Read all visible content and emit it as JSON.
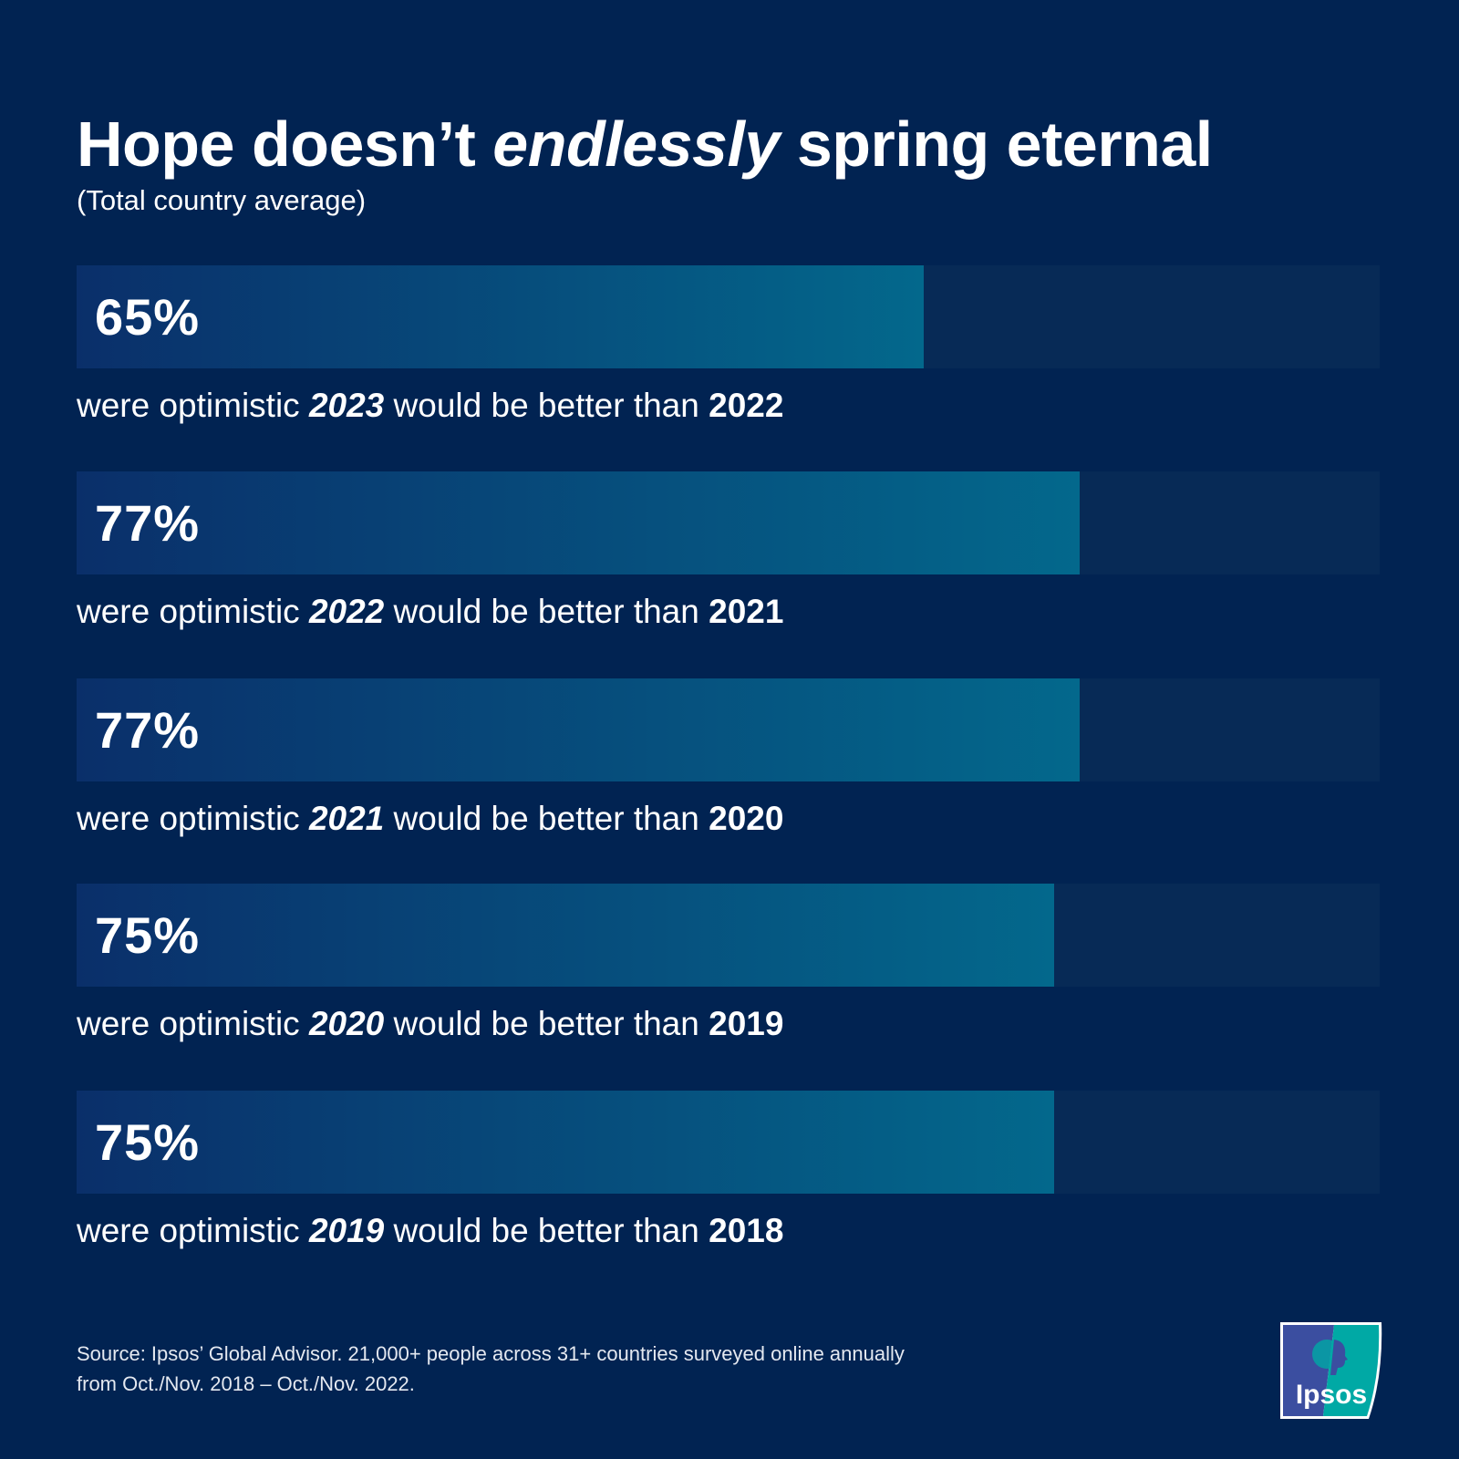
{
  "header": {
    "title_part1": "Hope doesn’t ",
    "title_italic": "endlessly",
    "title_part2": " spring eternal",
    "subtitle": "(Total country average)"
  },
  "chart_data": {
    "type": "bar",
    "orientation": "horizontal",
    "xlim": [
      0,
      100
    ],
    "unit": "%",
    "categories": [
      "2023",
      "2022",
      "2021",
      "2020",
      "2019"
    ],
    "values": [
      65,
      77,
      77,
      75,
      75
    ],
    "bars": [
      {
        "value": 65,
        "label": "65%",
        "prefix": "were optimistic ",
        "year": "2023",
        "middle": " would be better than ",
        "prev_year": "2022"
      },
      {
        "value": 77,
        "label": "77%",
        "prefix": "were optimistic ",
        "year": "2022",
        "middle": " would be better than ",
        "prev_year": "2021"
      },
      {
        "value": 77,
        "label": "77%",
        "prefix": "were optimistic ",
        "year": "2021",
        "middle": " would be better than ",
        "prev_year": "2020"
      },
      {
        "value": 75,
        "label": "75%",
        "prefix": "were optimistic ",
        "year": "2020",
        "middle": " would be better than ",
        "prev_year": "2019"
      },
      {
        "value": 75,
        "label": "75%",
        "prefix": "were optimistic ",
        "year": "2019",
        "middle": " would be better than ",
        "prev_year": "2018"
      }
    ],
    "colors": {
      "background": "#012352",
      "track": "#072a56",
      "fill_start": "#0a2f6a",
      "fill_end": "#03688c"
    }
  },
  "footer": {
    "source_line1": "Source: Ipsos’ Global Advisor. 21,000+ people across 31+ countries surveyed online annually",
    "source_line2": "from Oct./Nov. 2018 – Oct./Nov. 2022.",
    "logo_text": "Ipsos",
    "logo_colors": {
      "left": "#3b4ea0",
      "right": "#00a9a5"
    }
  }
}
